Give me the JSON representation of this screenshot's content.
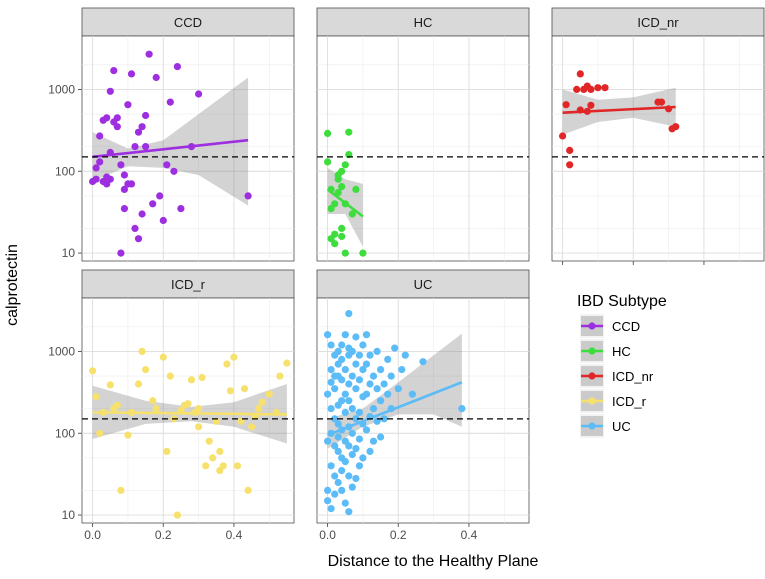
{
  "chart_data": {
    "type": "scatter",
    "xlabel": "Distance to the Healthy Plane",
    "ylabel": "calprotectin",
    "y_scale": "log10",
    "ylim": [
      8,
      4500
    ],
    "y_ticks": [
      10,
      100,
      1000
    ],
    "x_ticks": [
      0.0,
      0.2,
      0.4
    ],
    "x_tick_labels": [
      "0.0",
      "0.2",
      "0.4"
    ],
    "xlim": [
      -0.03,
      0.57
    ],
    "threshold_line": 150,
    "grid": true,
    "legend": {
      "title": "IBD Subtype",
      "placement": "right",
      "entries": [
        "CCD",
        "HC",
        "ICD_nr",
        "ICD_r",
        "UC"
      ]
    },
    "series": [
      {
        "name": "CCD",
        "color": "#9E2FE0",
        "points": [
          [
            0.0,
            75
          ],
          [
            0.01,
            110
          ],
          [
            0.01,
            80
          ],
          [
            0.02,
            130
          ],
          [
            0.02,
            270
          ],
          [
            0.03,
            420
          ],
          [
            0.03,
            75
          ],
          [
            0.04,
            85
          ],
          [
            0.04,
            70
          ],
          [
            0.05,
            80
          ],
          [
            0.05,
            950
          ],
          [
            0.06,
            400
          ],
          [
            0.06,
            1700
          ],
          [
            0.07,
            450
          ],
          [
            0.07,
            350
          ],
          [
            0.08,
            10
          ],
          [
            0.08,
            120
          ],
          [
            0.09,
            60
          ],
          [
            0.09,
            90
          ],
          [
            0.09,
            35
          ],
          [
            0.1,
            650
          ],
          [
            0.1,
            70
          ],
          [
            0.11,
            1550
          ],
          [
            0.11,
            70
          ],
          [
            0.12,
            200
          ],
          [
            0.12,
            20
          ],
          [
            0.13,
            300
          ],
          [
            0.13,
            15
          ],
          [
            0.14,
            350
          ],
          [
            0.15,
            480
          ],
          [
            0.15,
            200
          ],
          [
            0.16,
            2700
          ],
          [
            0.17,
            40
          ],
          [
            0.18,
            1400
          ],
          [
            0.19,
            50
          ],
          [
            0.2,
            25
          ],
          [
            0.21,
            120
          ],
          [
            0.22,
            700
          ],
          [
            0.23,
            100
          ],
          [
            0.24,
            1900
          ],
          [
            0.25,
            35
          ],
          [
            0.28,
            200
          ],
          [
            0.3,
            880
          ],
          [
            0.44,
            50
          ],
          [
            0.04,
            450
          ],
          [
            0.05,
            170
          ],
          [
            0.14,
            30
          ]
        ],
        "fit": {
          "x": [
            0.0,
            0.44
          ],
          "y": [
            150,
            240
          ]
        },
        "ci": {
          "x": [
            0.0,
            0.1,
            0.2,
            0.3,
            0.44
          ],
          "upper": [
            300,
            190,
            240,
            500,
            1400
          ],
          "lower": [
            75,
            115,
            110,
            90,
            38
          ]
        }
      },
      {
        "name": "HC",
        "color": "#3CDD3C",
        "points": [
          [
            0.0,
            290
          ],
          [
            0.0,
            130
          ],
          [
            0.01,
            15
          ],
          [
            0.01,
            35
          ],
          [
            0.01,
            60
          ],
          [
            0.02,
            40
          ],
          [
            0.02,
            17
          ],
          [
            0.02,
            13
          ],
          [
            0.03,
            55
          ],
          [
            0.03,
            80
          ],
          [
            0.03,
            90
          ],
          [
            0.04,
            65
          ],
          [
            0.04,
            20
          ],
          [
            0.04,
            16
          ],
          [
            0.04,
            100
          ],
          [
            0.05,
            40
          ],
          [
            0.05,
            120
          ],
          [
            0.05,
            10
          ],
          [
            0.06,
            300
          ],
          [
            0.06,
            160
          ],
          [
            0.07,
            30
          ],
          [
            0.08,
            60
          ],
          [
            0.1,
            10
          ]
        ],
        "fit": {
          "x": [
            0.0,
            0.1
          ],
          "y": [
            60,
            28
          ]
        },
        "ci": {
          "x": [
            0.0,
            0.05,
            0.1
          ],
          "upper": [
            110,
            80,
            70
          ],
          "lower": [
            30,
            30,
            12
          ]
        }
      },
      {
        "name": "ICD_nr",
        "color": "#E02626",
        "points": [
          [
            0.0,
            270
          ],
          [
            0.01,
            650
          ],
          [
            0.02,
            180
          ],
          [
            0.02,
            120
          ],
          [
            0.04,
            1000
          ],
          [
            0.05,
            1550
          ],
          [
            0.06,
            1000
          ],
          [
            0.07,
            1100
          ],
          [
            0.08,
            1000
          ],
          [
            0.1,
            1050
          ],
          [
            0.12,
            1050
          ],
          [
            0.08,
            640
          ],
          [
            0.05,
            560
          ],
          [
            0.27,
            700
          ],
          [
            0.28,
            700
          ],
          [
            0.3,
            580
          ],
          [
            0.31,
            330
          ],
          [
            0.32,
            350
          ],
          [
            0.07,
            540
          ]
        ],
        "fit": {
          "x": [
            0.0,
            0.32
          ],
          "y": [
            520,
            610
          ]
        },
        "ci": {
          "x": [
            0.0,
            0.1,
            0.2,
            0.32
          ],
          "upper": [
            1000,
            750,
            800,
            1050
          ],
          "lower": [
            280,
            400,
            450,
            350
          ]
        }
      },
      {
        "name": "ICD_r",
        "color": "#F7E16D",
        "points": [
          [
            0.0,
            580
          ],
          [
            0.01,
            280
          ],
          [
            0.02,
            100
          ],
          [
            0.03,
            180
          ],
          [
            0.05,
            390
          ],
          [
            0.06,
            200
          ],
          [
            0.07,
            220
          ],
          [
            0.08,
            20
          ],
          [
            0.1,
            95
          ],
          [
            0.11,
            180
          ],
          [
            0.13,
            400
          ],
          [
            0.14,
            1000
          ],
          [
            0.15,
            600
          ],
          [
            0.17,
            250
          ],
          [
            0.18,
            200
          ],
          [
            0.2,
            850
          ],
          [
            0.21,
            60
          ],
          [
            0.22,
            500
          ],
          [
            0.23,
            150
          ],
          [
            0.24,
            10
          ],
          [
            0.25,
            190
          ],
          [
            0.26,
            220
          ],
          [
            0.27,
            230
          ],
          [
            0.28,
            450
          ],
          [
            0.29,
            180
          ],
          [
            0.3,
            120
          ],
          [
            0.31,
            480
          ],
          [
            0.32,
            40
          ],
          [
            0.33,
            80
          ],
          [
            0.34,
            50
          ],
          [
            0.35,
            140
          ],
          [
            0.36,
            60
          ],
          [
            0.37,
            40
          ],
          [
            0.38,
            700
          ],
          [
            0.39,
            330
          ],
          [
            0.4,
            850
          ],
          [
            0.41,
            40
          ],
          [
            0.42,
            140
          ],
          [
            0.43,
            350
          ],
          [
            0.44,
            20
          ],
          [
            0.45,
            120
          ],
          [
            0.46,
            160
          ],
          [
            0.47,
            200
          ],
          [
            0.48,
            240
          ],
          [
            0.5,
            300
          ],
          [
            0.52,
            180
          ],
          [
            0.53,
            500
          ],
          [
            0.55,
            720
          ],
          [
            0.36,
            35
          ],
          [
            0.3,
            200
          ]
        ],
        "fit": {
          "x": [
            0.0,
            0.55
          ],
          "y": [
            180,
            170
          ]
        },
        "ci": {
          "x": [
            0.0,
            0.15,
            0.28,
            0.4,
            0.55
          ],
          "upper": [
            380,
            250,
            210,
            240,
            400
          ],
          "lower": [
            85,
            130,
            140,
            120,
            75
          ]
        }
      },
      {
        "name": "UC",
        "color": "#5CBCF7",
        "points": [
          [
            0.0,
            1600
          ],
          [
            0.0,
            300
          ],
          [
            0.0,
            80
          ],
          [
            0.0,
            20
          ],
          [
            0.0,
            15
          ],
          [
            0.01,
            1200
          ],
          [
            0.01,
            600
          ],
          [
            0.01,
            420
          ],
          [
            0.01,
            200
          ],
          [
            0.01,
            100
          ],
          [
            0.01,
            40
          ],
          [
            0.01,
            12
          ],
          [
            0.02,
            900
          ],
          [
            0.02,
            350
          ],
          [
            0.02,
            150
          ],
          [
            0.02,
            70
          ],
          [
            0.02,
            30
          ],
          [
            0.02,
            18
          ],
          [
            0.03,
            1000
          ],
          [
            0.03,
            700
          ],
          [
            0.03,
            500
          ],
          [
            0.03,
            220
          ],
          [
            0.03,
            130
          ],
          [
            0.03,
            90
          ],
          [
            0.03,
            60
          ],
          [
            0.03,
            25
          ],
          [
            0.04,
            800
          ],
          [
            0.04,
            450
          ],
          [
            0.04,
            250
          ],
          [
            0.04,
            110
          ],
          [
            0.04,
            50
          ],
          [
            0.04,
            35
          ],
          [
            0.04,
            20
          ],
          [
            0.05,
            1600
          ],
          [
            0.05,
            600
          ],
          [
            0.05,
            300
          ],
          [
            0.05,
            180
          ],
          [
            0.05,
            80
          ],
          [
            0.05,
            45
          ],
          [
            0.05,
            14
          ],
          [
            0.06,
            2900
          ],
          [
            0.06,
            900
          ],
          [
            0.06,
            400
          ],
          [
            0.06,
            250
          ],
          [
            0.06,
            120
          ],
          [
            0.06,
            70
          ],
          [
            0.06,
            30
          ],
          [
            0.06,
            11
          ],
          [
            0.07,
            1000
          ],
          [
            0.07,
            500
          ],
          [
            0.07,
            200
          ],
          [
            0.07,
            100
          ],
          [
            0.07,
            55
          ],
          [
            0.07,
            22
          ],
          [
            0.08,
            1500
          ],
          [
            0.08,
            700
          ],
          [
            0.08,
            350
          ],
          [
            0.08,
            150
          ],
          [
            0.08,
            65
          ],
          [
            0.08,
            28
          ],
          [
            0.09,
            900
          ],
          [
            0.09,
            450
          ],
          [
            0.09,
            180
          ],
          [
            0.09,
            85
          ],
          [
            0.09,
            40
          ],
          [
            0.1,
            600
          ],
          [
            0.1,
            280
          ],
          [
            0.1,
            130
          ],
          [
            0.1,
            50
          ],
          [
            0.11,
            1600
          ],
          [
            0.11,
            700
          ],
          [
            0.11,
            300
          ],
          [
            0.11,
            110
          ],
          [
            0.12,
            900
          ],
          [
            0.12,
            400
          ],
          [
            0.12,
            160
          ],
          [
            0.12,
            60
          ],
          [
            0.13,
            500
          ],
          [
            0.13,
            200
          ],
          [
            0.13,
            80
          ],
          [
            0.14,
            1000
          ],
          [
            0.14,
            350
          ],
          [
            0.14,
            140
          ],
          [
            0.15,
            600
          ],
          [
            0.15,
            250
          ],
          [
            0.15,
            90
          ],
          [
            0.16,
            400
          ],
          [
            0.16,
            150
          ],
          [
            0.17,
            800
          ],
          [
            0.17,
            300
          ],
          [
            0.18,
            500
          ],
          [
            0.18,
            200
          ],
          [
            0.19,
            1100
          ],
          [
            0.2,
            350
          ],
          [
            0.21,
            600
          ],
          [
            0.22,
            900
          ],
          [
            0.24,
            300
          ],
          [
            0.27,
            750
          ],
          [
            0.38,
            200
          ],
          [
            0.02,
            500
          ],
          [
            0.06,
            1100
          ],
          [
            0.1,
            1200
          ],
          [
            0.04,
            1200
          ]
        ],
        "fit": {
          "x": [
            0.0,
            0.38
          ],
          "y": [
            95,
            420
          ]
        },
        "ci": {
          "x": [
            0.0,
            0.1,
            0.2,
            0.3,
            0.38
          ],
          "upper": [
            150,
            200,
            420,
            900,
            1650
          ],
          "lower": [
            65,
            120,
            170,
            170,
            120
          ]
        }
      }
    ],
    "panels": [
      {
        "title": "CCD",
        "series": "CCD"
      },
      {
        "title": "HC",
        "series": "HC"
      },
      {
        "title": "ICD_nr",
        "series": "ICD_nr"
      },
      {
        "title": "ICD_r",
        "series": "ICD_r"
      },
      {
        "title": "UC",
        "series": "UC"
      }
    ]
  }
}
